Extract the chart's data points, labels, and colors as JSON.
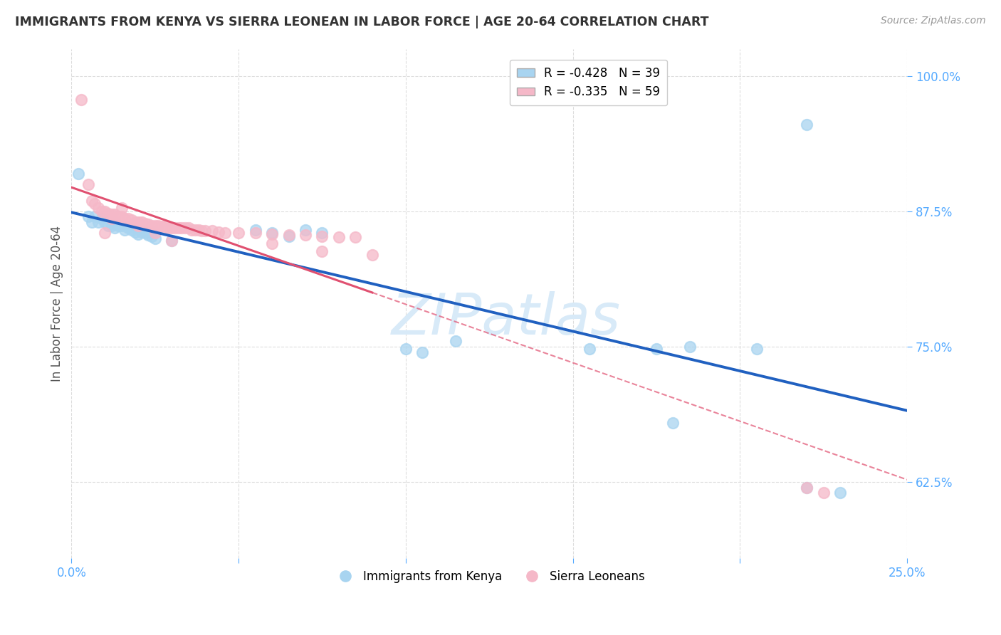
{
  "title": "IMMIGRANTS FROM KENYA VS SIERRA LEONEAN IN LABOR FORCE | AGE 20-64 CORRELATION CHART",
  "source": "Source: ZipAtlas.com",
  "ylabel_label": "In Labor Force | Age 20-64",
  "legend_kenya": "R = -0.428   N = 39",
  "legend_sierra": "R = -0.335   N = 59",
  "kenya_color": "#a8d4f0",
  "sierra_color": "#f5b8c8",
  "kenya_line_color": "#2060c0",
  "sierra_line_color": "#e05070",
  "watermark": "ZIPatlas",
  "kenya_scatter": [
    [
      0.002,
      0.91
    ],
    [
      0.005,
      0.87
    ],
    [
      0.006,
      0.865
    ],
    [
      0.007,
      0.87
    ],
    [
      0.008,
      0.865
    ],
    [
      0.009,
      0.868
    ],
    [
      0.01,
      0.865
    ],
    [
      0.011,
      0.862
    ],
    [
      0.012,
      0.862
    ],
    [
      0.013,
      0.86
    ],
    [
      0.014,
      0.862
    ],
    [
      0.015,
      0.862
    ],
    [
      0.016,
      0.858
    ],
    [
      0.017,
      0.86
    ],
    [
      0.018,
      0.858
    ],
    [
      0.019,
      0.856
    ],
    [
      0.02,
      0.854
    ],
    [
      0.021,
      0.856
    ],
    [
      0.022,
      0.855
    ],
    [
      0.023,
      0.853
    ],
    [
      0.024,
      0.852
    ],
    [
      0.025,
      0.85
    ],
    [
      0.03,
      0.848
    ],
    [
      0.055,
      0.858
    ],
    [
      0.06,
      0.855
    ],
    [
      0.065,
      0.852
    ],
    [
      0.07,
      0.858
    ],
    [
      0.075,
      0.855
    ],
    [
      0.1,
      0.748
    ],
    [
      0.105,
      0.745
    ],
    [
      0.115,
      0.755
    ],
    [
      0.155,
      0.748
    ],
    [
      0.175,
      0.748
    ],
    [
      0.185,
      0.75
    ],
    [
      0.205,
      0.748
    ],
    [
      0.22,
      0.62
    ],
    [
      0.23,
      0.615
    ],
    [
      0.18,
      0.68
    ],
    [
      0.22,
      0.955
    ]
  ],
  "sierra_scatter": [
    [
      0.003,
      0.978
    ],
    [
      0.005,
      0.9
    ],
    [
      0.006,
      0.885
    ],
    [
      0.007,
      0.882
    ],
    [
      0.008,
      0.878
    ],
    [
      0.009,
      0.875
    ],
    [
      0.01,
      0.875
    ],
    [
      0.011,
      0.873
    ],
    [
      0.012,
      0.872
    ],
    [
      0.013,
      0.872
    ],
    [
      0.014,
      0.87
    ],
    [
      0.015,
      0.87
    ],
    [
      0.016,
      0.868
    ],
    [
      0.017,
      0.868
    ],
    [
      0.018,
      0.867
    ],
    [
      0.019,
      0.865
    ],
    [
      0.02,
      0.865
    ],
    [
      0.021,
      0.865
    ],
    [
      0.022,
      0.864
    ],
    [
      0.023,
      0.863
    ],
    [
      0.024,
      0.862
    ],
    [
      0.025,
      0.862
    ],
    [
      0.026,
      0.862
    ],
    [
      0.027,
      0.861
    ],
    [
      0.028,
      0.861
    ],
    [
      0.029,
      0.86
    ],
    [
      0.03,
      0.86
    ],
    [
      0.031,
      0.86
    ],
    [
      0.032,
      0.86
    ],
    [
      0.033,
      0.86
    ],
    [
      0.034,
      0.86
    ],
    [
      0.035,
      0.86
    ],
    [
      0.036,
      0.858
    ],
    [
      0.037,
      0.858
    ],
    [
      0.038,
      0.858
    ],
    [
      0.039,
      0.857
    ],
    [
      0.04,
      0.857
    ],
    [
      0.042,
      0.857
    ],
    [
      0.044,
      0.856
    ],
    [
      0.046,
      0.855
    ],
    [
      0.05,
      0.855
    ],
    [
      0.055,
      0.855
    ],
    [
      0.06,
      0.854
    ],
    [
      0.065,
      0.853
    ],
    [
      0.07,
      0.853
    ],
    [
      0.075,
      0.852
    ],
    [
      0.08,
      0.851
    ],
    [
      0.085,
      0.851
    ],
    [
      0.01,
      0.855
    ],
    [
      0.012,
      0.868
    ],
    [
      0.015,
      0.878
    ],
    [
      0.02,
      0.862
    ],
    [
      0.025,
      0.855
    ],
    [
      0.03,
      0.848
    ],
    [
      0.06,
      0.845
    ],
    [
      0.075,
      0.838
    ],
    [
      0.09,
      0.835
    ],
    [
      0.22,
      0.62
    ],
    [
      0.225,
      0.615
    ]
  ],
  "xlim": [
    0.0,
    0.25
  ],
  "ylim": [
    0.555,
    1.025
  ],
  "xticks": [
    0.0,
    0.05,
    0.1,
    0.15,
    0.2,
    0.25
  ],
  "xtick_labels": [
    "0.0%",
    "",
    "",
    "",
    "",
    "25.0%"
  ],
  "yticks": [
    0.625,
    0.75,
    0.875,
    1.0
  ],
  "ytick_labels": [
    "62.5%",
    "75.0%",
    "87.5%",
    "100.0%"
  ],
  "tick_color": "#55aaff",
  "grid_color": "#dddddd"
}
